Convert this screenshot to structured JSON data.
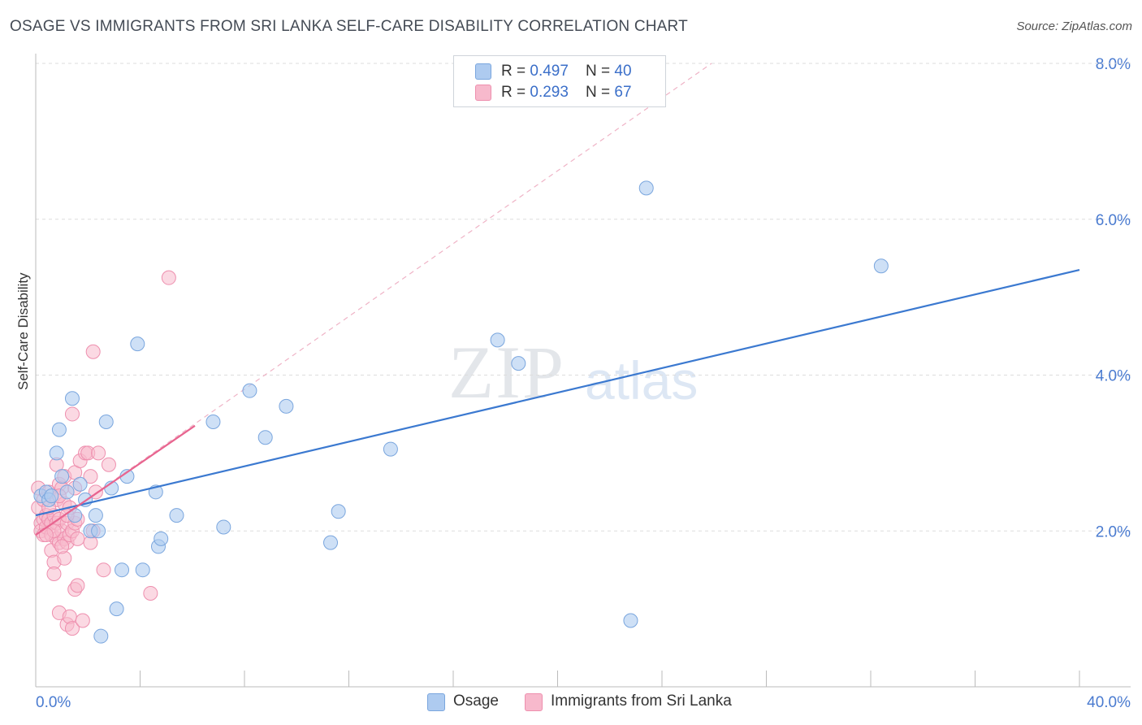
{
  "title": "OSAGE VS IMMIGRANTS FROM SRI LANKA SELF-CARE DISABILITY CORRELATION CHART",
  "source": "Source: ZipAtlas.com",
  "watermark": {
    "zip": "ZIP",
    "atlas": "atlas"
  },
  "legend": {
    "rows": [
      {
        "r_label": "R = ",
        "r_value": "0.497",
        "n_label": "N = ",
        "n_value": "40",
        "color": "#aecbf0"
      },
      {
        "r_label": "R = ",
        "r_value": "0.293",
        "n_label": "N = ",
        "n_value": "67",
        "color": "#f7b9cc"
      }
    ]
  },
  "bottom_legend": [
    {
      "label": "Osage",
      "color": "#aecbf0"
    },
    {
      "label": "Immigrants from Sri Lanka",
      "color": "#f7b9cc"
    }
  ],
  "colors": {
    "blue_fill": "#aecbf0",
    "blue_stroke": "#7aa6de",
    "blue_line": "#3b79d0",
    "pink_fill": "#f7b9cc",
    "pink_stroke": "#ee8fae",
    "pink_line": "#e8648f",
    "axis_text": "#4a7bd0",
    "grid": "#dddddd"
  },
  "chart_data": {
    "type": "scatter",
    "title": "OSAGE VS IMMIGRANTS FROM SRI LANKA SELF-CARE DISABILITY CORRELATION CHART",
    "xlabel": "",
    "ylabel": "Self-Care Disability",
    "xlim": [
      0,
      40
    ],
    "ylim": [
      0,
      8.0
    ],
    "x_tick_labels": [
      "0.0%",
      "40.0%"
    ],
    "y_ticks": [
      2.0,
      4.0,
      6.0,
      8.0
    ],
    "y_tick_labels": [
      "2.0%",
      "4.0%",
      "6.0%",
      "8.0%"
    ],
    "series": [
      {
        "name": "Osage",
        "R": 0.497,
        "N": 40,
        "trend": {
          "x": [
            0,
            40
          ],
          "y": [
            2.2,
            5.35
          ]
        },
        "points": [
          [
            0.2,
            2.45
          ],
          [
            0.4,
            2.5
          ],
          [
            0.5,
            2.4
          ],
          [
            0.6,
            2.45
          ],
          [
            0.8,
            3.0
          ],
          [
            0.9,
            3.3
          ],
          [
            1.0,
            2.7
          ],
          [
            1.2,
            2.5
          ],
          [
            1.4,
            3.7
          ],
          [
            1.5,
            2.2
          ],
          [
            1.7,
            2.6
          ],
          [
            1.9,
            2.4
          ],
          [
            2.1,
            2.0
          ],
          [
            2.3,
            2.2
          ],
          [
            2.4,
            2.0
          ],
          [
            2.5,
            0.65
          ],
          [
            2.7,
            3.4
          ],
          [
            2.9,
            2.55
          ],
          [
            3.1,
            1.0
          ],
          [
            3.3,
            1.5
          ],
          [
            3.5,
            2.7
          ],
          [
            3.9,
            4.4
          ],
          [
            4.1,
            1.5
          ],
          [
            4.6,
            2.5
          ],
          [
            4.7,
            1.8
          ],
          [
            4.8,
            1.9
          ],
          [
            5.4,
            2.2
          ],
          [
            6.8,
            3.4
          ],
          [
            7.2,
            2.05
          ],
          [
            8.2,
            3.8
          ],
          [
            8.8,
            3.2
          ],
          [
            9.6,
            3.6
          ],
          [
            11.3,
            1.85
          ],
          [
            11.6,
            2.25
          ],
          [
            13.6,
            3.05
          ],
          [
            17.7,
            4.45
          ],
          [
            18.5,
            4.15
          ],
          [
            22.8,
            0.85
          ],
          [
            23.4,
            6.4
          ],
          [
            32.4,
            5.4
          ]
        ]
      },
      {
        "name": "Immigrants from Sri Lanka",
        "R": 0.293,
        "N": 67,
        "trend": {
          "x": [
            0,
            6.1
          ],
          "y": [
            1.95,
            3.35
          ],
          "extended": {
            "x": [
              0,
              25.9
            ],
            "y": [
              1.95,
              8.0
            ]
          }
        },
        "points": [
          [
            0.1,
            2.55
          ],
          [
            0.1,
            2.3
          ],
          [
            0.2,
            2.1
          ],
          [
            0.2,
            2.0
          ],
          [
            0.3,
            2.4
          ],
          [
            0.3,
            2.15
          ],
          [
            0.3,
            1.95
          ],
          [
            0.4,
            2.2
          ],
          [
            0.4,
            2.05
          ],
          [
            0.5,
            2.5
          ],
          [
            0.5,
            2.15
          ],
          [
            0.6,
            2.1
          ],
          [
            0.6,
            1.95
          ],
          [
            0.6,
            1.75
          ],
          [
            0.7,
            2.2
          ],
          [
            0.7,
            1.6
          ],
          [
            0.7,
            1.45
          ],
          [
            0.8,
            2.4
          ],
          [
            0.8,
            2.1
          ],
          [
            0.8,
            1.9
          ],
          [
            0.8,
            2.85
          ],
          [
            0.9,
            2.6
          ],
          [
            0.9,
            2.15
          ],
          [
            0.9,
            1.85
          ],
          [
            0.9,
            0.95
          ],
          [
            1.0,
            2.55
          ],
          [
            1.0,
            2.0
          ],
          [
            1.1,
            2.35
          ],
          [
            1.1,
            1.9
          ],
          [
            1.1,
            1.65
          ],
          [
            1.1,
            2.7
          ],
          [
            1.2,
            2.1
          ],
          [
            1.2,
            1.85
          ],
          [
            1.2,
            0.8
          ],
          [
            1.3,
            2.3
          ],
          [
            1.3,
            1.95
          ],
          [
            1.3,
            0.9
          ],
          [
            1.4,
            2.0
          ],
          [
            1.4,
            0.75
          ],
          [
            1.4,
            3.5
          ],
          [
            1.5,
            2.75
          ],
          [
            1.5,
            2.55
          ],
          [
            1.5,
            2.1
          ],
          [
            1.5,
            1.25
          ],
          [
            1.6,
            2.15
          ],
          [
            1.6,
            1.9
          ],
          [
            1.6,
            1.3
          ],
          [
            1.7,
            2.9
          ],
          [
            1.8,
            0.85
          ],
          [
            1.9,
            3.0
          ],
          [
            2.0,
            3.0
          ],
          [
            2.1,
            2.7
          ],
          [
            2.1,
            1.85
          ],
          [
            2.2,
            2.0
          ],
          [
            2.2,
            4.3
          ],
          [
            2.3,
            2.5
          ],
          [
            2.4,
            3.0
          ],
          [
            2.6,
            1.5
          ],
          [
            2.8,
            2.85
          ],
          [
            4.4,
            1.2
          ],
          [
            5.1,
            5.25
          ],
          [
            0.5,
            2.3
          ],
          [
            0.7,
            2.0
          ],
          [
            1.0,
            1.8
          ],
          [
            1.2,
            2.2
          ],
          [
            0.4,
            1.95
          ],
          [
            0.9,
            2.45
          ]
        ]
      }
    ]
  }
}
